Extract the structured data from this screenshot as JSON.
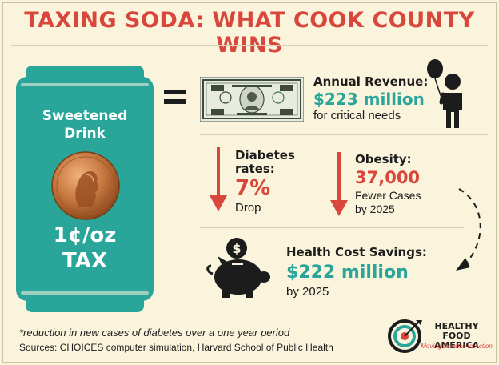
{
  "title": "TAXING SODA: WHAT COOK COUNTY WINS",
  "can": {
    "label_line1": "Sweetened",
    "label_line2": "Drink",
    "tax_line1": "1¢/oz",
    "tax_line2": "TAX"
  },
  "revenue": {
    "label": "Annual Revenue:",
    "value": "$223 million",
    "subtext": "for critical needs"
  },
  "diabetes": {
    "label_line1": "Diabetes",
    "label_line2": "rates:",
    "value": "7%",
    "subtext": "Drop"
  },
  "obesity": {
    "label": "Obesity:",
    "value": "37,000",
    "subtext_line1": "Fewer Cases",
    "subtext_line2": "by 2025"
  },
  "health_cost": {
    "label": "Health Cost Savings:",
    "value": "$222 million",
    "subtext": "by 2025"
  },
  "footnote": "*reduction in new cases of diabetes over a one year period",
  "sources": "Sources: CHOICES computer simulation, Harvard School of Public Health",
  "logo": {
    "name_line1": "HEALTHY FOOD",
    "name_line2": "AMERICA",
    "tagline": "Moving Science to Action"
  },
  "colors": {
    "background": "#fbf4dc",
    "title_red": "#d9463c",
    "teal": "#2aa59a",
    "dark": "#1c1c1c"
  },
  "icons": [
    "equals-icon",
    "dollar-bill-icon",
    "balloon-child-icon",
    "down-arrow-icon",
    "piggy-bank-icon",
    "curved-dashed-arrow-icon",
    "penny-icon"
  ]
}
